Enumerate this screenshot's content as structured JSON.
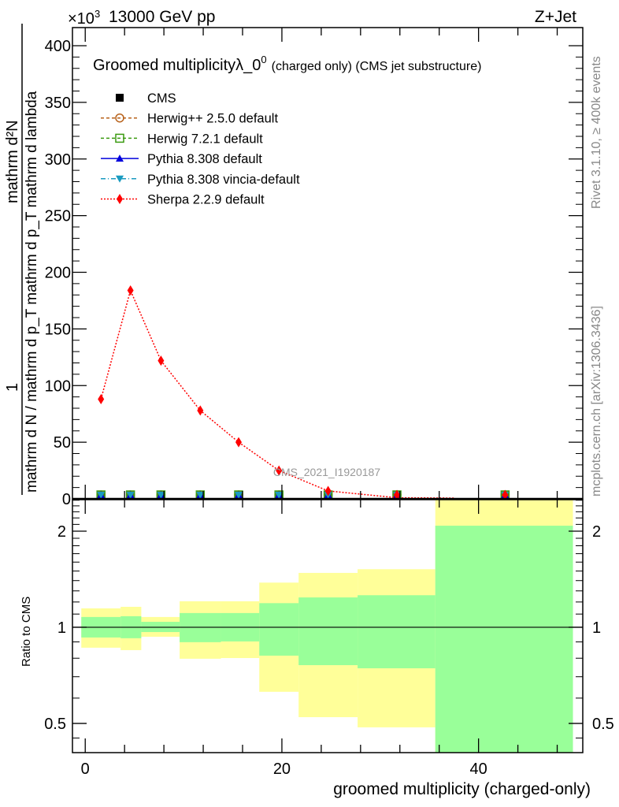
{
  "header": {
    "left": "13000 GeV pp",
    "exponent": "×10",
    "exponent_sup": "3",
    "right": "Z+Jet"
  },
  "side_text": {
    "rivet": "Rivet 3.1.10, ≥ 400k events",
    "mcplots": "mcplots.cern.ch [arXiv:1306.3436]"
  },
  "watermark": "CMS_2021_I1920187",
  "chart_data": [
    {
      "type": "line",
      "title": "Groomed multiplicityλ_0",
      "title_sup": "0",
      "title_small": "(charged only) (CMS jet substructure)",
      "ylabel_num": "mathrm d²N",
      "ylabel_one": "1",
      "ylabel_den": "mathrm d N / mathrm d p_T mathrm d p_T mathrm d lambda",
      "ylim": [
        0,
        416
      ],
      "xlim": [
        -1.3,
        50.6
      ],
      "yticks": [
        0,
        50,
        100,
        150,
        200,
        250,
        300,
        350,
        400
      ],
      "y_scale_note": "×10^3",
      "x": [
        1.6,
        4.6,
        7.7,
        11.7,
        15.6,
        19.7,
        24.7,
        31.7,
        42.7
      ],
      "legend_position": "top-left",
      "series": [
        {
          "name": "CMS",
          "color": "#000000",
          "marker": "square",
          "dash": "",
          "values": [
            0,
            0,
            0,
            0,
            0,
            0,
            0,
            0,
            0
          ]
        },
        {
          "name": "Herwig++ 2.5.0 default",
          "color": "#b8621b",
          "marker": "circle-open",
          "dash": "4,3",
          "values": [
            0,
            0,
            0,
            0,
            0,
            0,
            0,
            0,
            0
          ]
        },
        {
          "name": "Herwig 7.2.1 default",
          "color": "#3a9a10",
          "marker": "square-open",
          "dash": "4,3",
          "values": [
            0,
            0,
            0,
            0,
            0,
            0,
            0,
            0,
            0
          ]
        },
        {
          "name": "Pythia 8.308 default",
          "color": "#0000dd",
          "marker": "triangle-up",
          "dash": "",
          "values": [
            0,
            0,
            0,
            0,
            0,
            0,
            0,
            0,
            0
          ]
        },
        {
          "name": "Pythia 8.308 vincia-default",
          "color": "#1a9bc0",
          "marker": "triangle-down",
          "dash": "6,3,1,3",
          "values": [
            0,
            0,
            0,
            0,
            0,
            0,
            0,
            0,
            0
          ]
        },
        {
          "name": "Sherpa 2.2.9 default",
          "color": "#ff0000",
          "marker": "diamond",
          "dash": "2,2",
          "values": [
            88,
            184,
            122,
            78,
            50,
            25,
            7,
            1,
            0.3
          ],
          "tail_x": 37.5
        }
      ]
    },
    {
      "type": "area",
      "ylabel": "Ratio to CMS",
      "xlabel": "groomed multiplicity (charged-only)",
      "yscale": "log",
      "ylim": [
        0.405,
        2.51
      ],
      "xlim": [
        -1.3,
        50.6
      ],
      "yticks": [
        0.5,
        1,
        2
      ],
      "ytick_labels": [
        "0.5",
        "1",
        "2"
      ],
      "xticks": [
        0,
        20,
        40
      ],
      "xtick_labels": [
        "0",
        "20",
        "40"
      ],
      "bin_edges": [
        -0.4,
        3.6,
        5.7,
        9.6,
        13.8,
        17.7,
        21.7,
        27.7,
        35.6,
        49.6
      ],
      "band_outer": {
        "color": "#ffff99",
        "low": [
          0.863,
          0.848,
          0.934,
          0.797,
          0.801,
          0.628,
          0.523,
          0.486,
          0.3
        ],
        "high": [
          1.146,
          1.159,
          1.077,
          1.206,
          1.206,
          1.38,
          1.48,
          1.52,
          3.0
        ]
      },
      "band_inner": {
        "color": "#99ff99",
        "low": [
          0.929,
          0.924,
          0.966,
          0.898,
          0.903,
          0.815,
          0.761,
          0.744,
          0.35
        ],
        "high": [
          1.077,
          1.083,
          1.04,
          1.108,
          1.108,
          1.19,
          1.24,
          1.26,
          2.08
        ]
      }
    }
  ]
}
